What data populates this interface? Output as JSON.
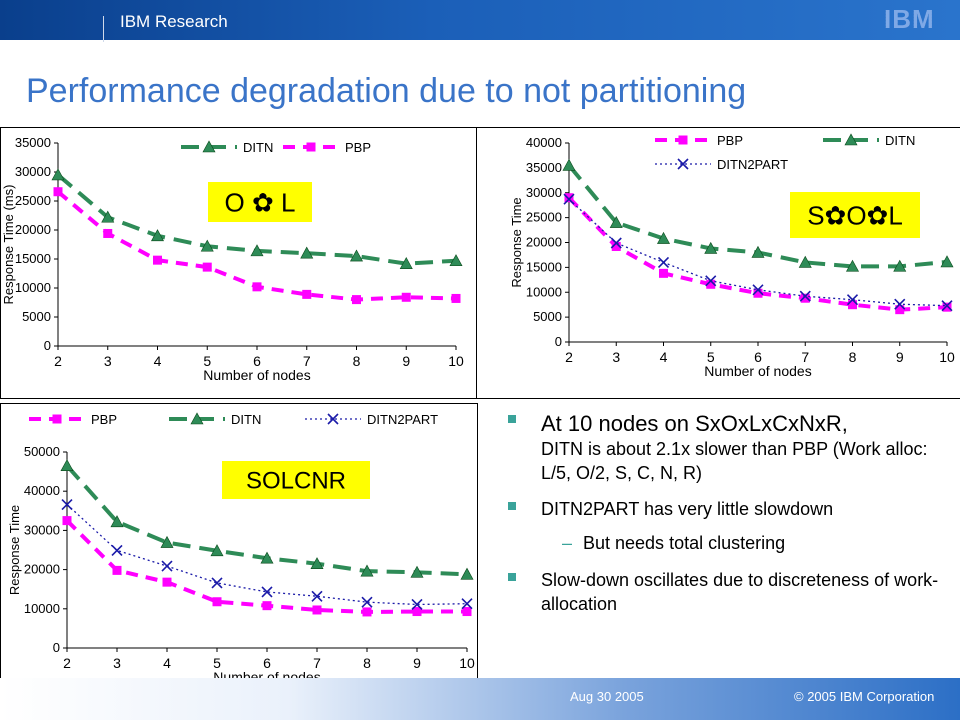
{
  "header": {
    "org": "IBM Research",
    "logo_text": "IBM"
  },
  "slide": {
    "title": "Performance degradation due to not partitioning"
  },
  "footer": {
    "date": "Aug 30 2005",
    "copyright": "© 2005 IBM Corporation"
  },
  "bullets": {
    "b1_main": "At 10 nodes on SxOxLxCxNxR,",
    "b1_sub": "DITN is about 2.1x slower than PBP (Work alloc: L/5, O/2, S, C, N, R)",
    "b2": "DITN2PART has very little slowdown",
    "b2_sub": "But needs total clustering",
    "b3": "Slow-down oscillates due to discreteness of work-allocation"
  },
  "colors": {
    "ditn": "#2e8b57",
    "pbp": "#ff00ff",
    "ditn2part": "#1a1aa8",
    "tag_bg": "#ffff00"
  },
  "chart_data": [
    {
      "type": "line",
      "tag": "O ✿ L",
      "ylabel": "Response Time (ms)",
      "xlabel": "Number of nodes",
      "legend_position": "top",
      "x": [
        2,
        3,
        4,
        5,
        6,
        7,
        8,
        9,
        10
      ],
      "ylim": [
        0,
        35000
      ],
      "yticks": [
        0,
        5000,
        10000,
        15000,
        20000,
        25000,
        30000,
        35000
      ],
      "series": [
        {
          "name": "DITN",
          "values": [
            29500,
            22200,
            19000,
            17200,
            16400,
            16000,
            15500,
            14200,
            14700
          ]
        },
        {
          "name": "PBP",
          "values": [
            26600,
            19400,
            14800,
            13600,
            10200,
            8900,
            8000,
            8400,
            8200
          ]
        }
      ]
    },
    {
      "type": "line",
      "tag": "S✿O✿L",
      "ylabel": "Response Time",
      "xlabel": "Number of nodes",
      "legend_position": "top",
      "x": [
        2,
        3,
        4,
        5,
        6,
        7,
        8,
        9,
        10
      ],
      "ylim": [
        0,
        40000
      ],
      "yticks": [
        0,
        5000,
        10000,
        15000,
        20000,
        25000,
        30000,
        35000,
        40000
      ],
      "series": [
        {
          "name": "PBP",
          "values": [
            29000,
            19200,
            13800,
            11600,
            9800,
            8800,
            7500,
            6500,
            7000
          ]
        },
        {
          "name": "DITN",
          "values": [
            35500,
            24000,
            20800,
            18800,
            18000,
            16000,
            15200,
            15200,
            16100
          ]
        },
        {
          "name": "DITN2PART",
          "values": [
            28700,
            19900,
            16000,
            12300,
            10500,
            9200,
            8500,
            7600,
            7300
          ]
        }
      ]
    },
    {
      "type": "line",
      "tag": "SOLCNR",
      "ylabel": "Response Time",
      "xlabel": "Number of nodes",
      "legend_position": "top",
      "x": [
        2,
        3,
        4,
        5,
        6,
        7,
        8,
        9,
        10
      ],
      "ylim": [
        0,
        50000
      ],
      "yticks": [
        0,
        10000,
        20000,
        30000,
        40000,
        50000
      ],
      "series": [
        {
          "name": "PBP",
          "values": [
            32500,
            19800,
            16800,
            11800,
            10800,
            9700,
            9200,
            9300,
            9300
          ]
        },
        {
          "name": "DITN",
          "values": [
            46500,
            32200,
            26900,
            24800,
            22900,
            21500,
            19600,
            19300,
            18800
          ]
        },
        {
          "name": "DITN2PART",
          "values": [
            36600,
            24900,
            20900,
            16600,
            14300,
            13200,
            11700,
            11100,
            11300
          ]
        }
      ]
    }
  ]
}
